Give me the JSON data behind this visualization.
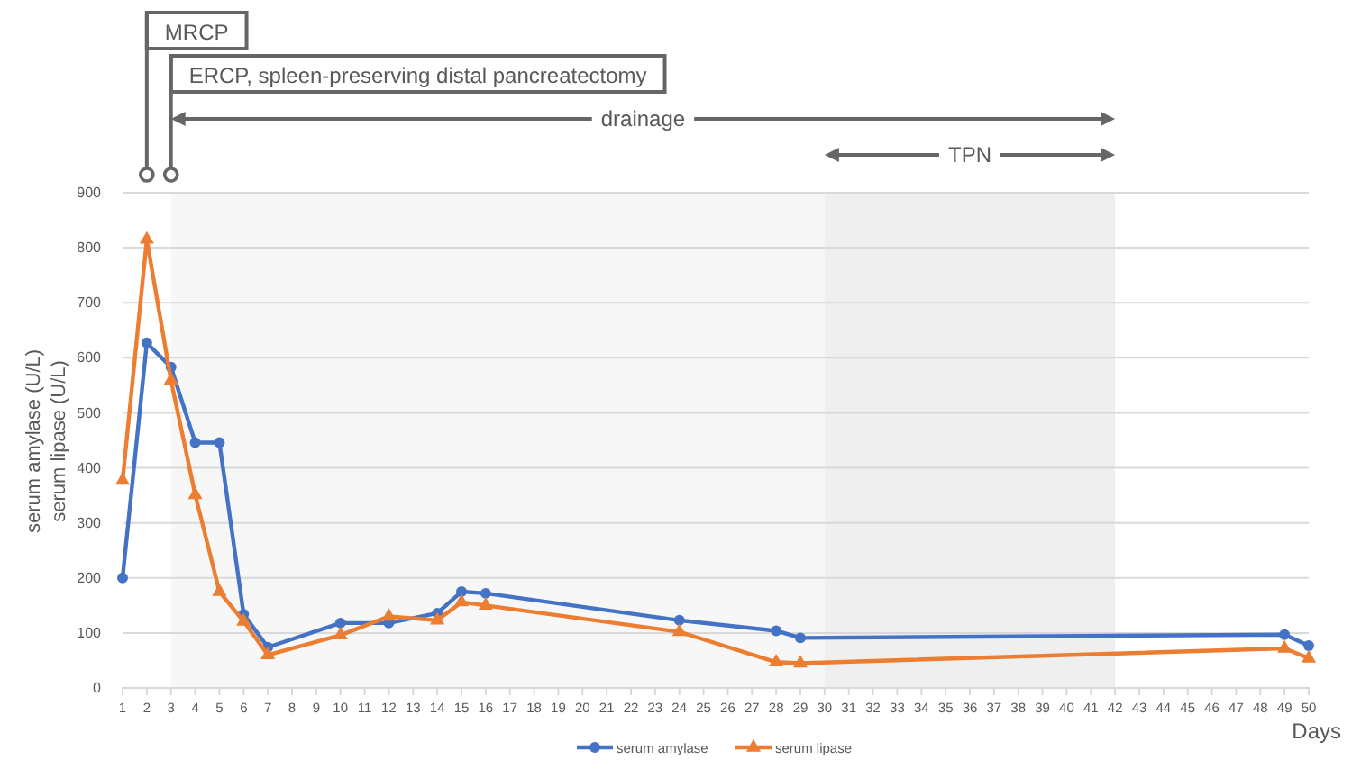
{
  "chart_data": {
    "type": "line",
    "xlabel": "Days",
    "ylabel": "serum amylase (U/L)\nserum lipase (U/L)",
    "xlim": [
      1,
      50
    ],
    "xticks": [
      1,
      2,
      3,
      4,
      5,
      6,
      7,
      8,
      9,
      10,
      11,
      12,
      13,
      14,
      15,
      16,
      17,
      18,
      19,
      20,
      21,
      22,
      23,
      24,
      25,
      26,
      27,
      28,
      29,
      30,
      31,
      32,
      33,
      34,
      35,
      36,
      37,
      38,
      39,
      40,
      41,
      42,
      43,
      44,
      45,
      46,
      47,
      48,
      49,
      50
    ],
    "ylim": [
      0,
      900
    ],
    "yticks": [
      0,
      100,
      200,
      300,
      400,
      500,
      600,
      700,
      800,
      900
    ],
    "grid": "y",
    "legend": "bottom",
    "series": [
      {
        "name": "serum amylase",
        "color": "#4472c4",
        "marker": "circle",
        "x": [
          1,
          2,
          3,
          4,
          5,
          6,
          7,
          10,
          12,
          14,
          15,
          16,
          24,
          28,
          29,
          49,
          50
        ],
        "values": [
          200,
          627,
          583,
          446,
          446,
          134,
          74,
          118,
          118,
          136,
          175,
          172,
          123,
          104,
          91,
          97,
          77
        ]
      },
      {
        "name": "serum lipase",
        "color": "#ed7d31",
        "marker": "triangle",
        "x": [
          1,
          2,
          3,
          4,
          5,
          6,
          7,
          10,
          12,
          14,
          15,
          16,
          24,
          28,
          29,
          49,
          50
        ],
        "values": [
          377,
          815,
          559,
          351,
          175,
          121,
          60,
          96,
          130,
          123,
          156,
          150,
          102,
          47,
          45,
          72,
          54
        ]
      }
    ],
    "ref_lines": [
      {
        "axis": "x",
        "value": 2,
        "label": "MRCP"
      },
      {
        "axis": "x",
        "value": 3,
        "label": "ERCP, spleen-preserving distal pancreatectomy"
      }
    ],
    "bands": [
      {
        "axis": "x",
        "from": 3,
        "to": 42,
        "label": "drainage",
        "color": "#666666"
      },
      {
        "axis": "x",
        "from": 30,
        "to": 42,
        "label": "TPN",
        "color": "#666666"
      }
    ]
  }
}
